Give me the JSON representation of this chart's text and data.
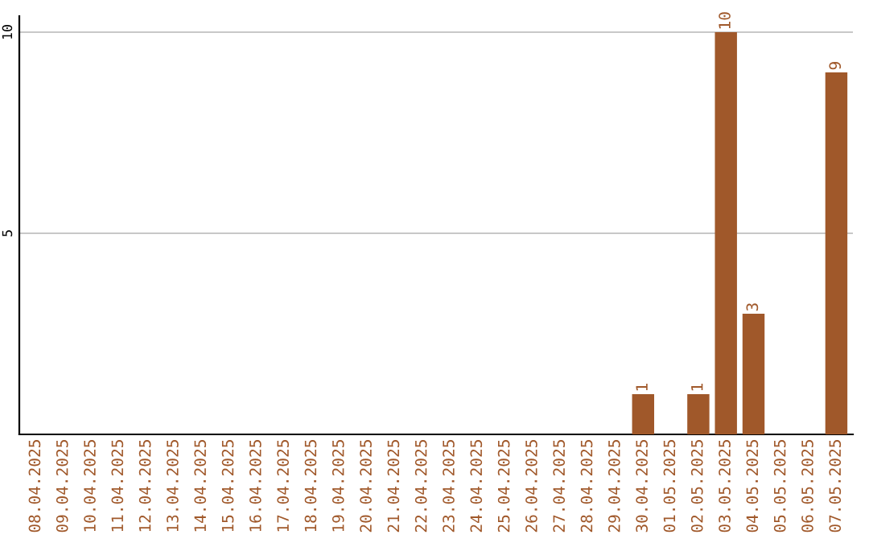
{
  "chart_data": {
    "type": "bar",
    "categories": [
      "08.04.2025",
      "09.04.2025",
      "10.04.2025",
      "11.04.2025",
      "12.04.2025",
      "13.04.2025",
      "14.04.2025",
      "15.04.2025",
      "16.04.2025",
      "17.04.2025",
      "18.04.2025",
      "19.04.2025",
      "20.04.2025",
      "21.04.2025",
      "22.04.2025",
      "23.04.2025",
      "24.04.2025",
      "25.04.2025",
      "26.04.2025",
      "27.04.2025",
      "28.04.2025",
      "29.04.2025",
      "30.04.2025",
      "01.05.2025",
      "02.05.2025",
      "03.05.2025",
      "04.05.2025",
      "05.05.2025",
      "06.05.2025",
      "07.05.2025"
    ],
    "values": [
      0,
      0,
      0,
      0,
      0,
      0,
      0,
      0,
      0,
      0,
      0,
      0,
      0,
      0,
      0,
      0,
      0,
      0,
      0,
      0,
      0,
      0,
      1,
      0,
      1,
      10,
      3,
      0,
      0,
      9
    ],
    "value_labels": [
      null,
      null,
      null,
      null,
      null,
      null,
      null,
      null,
      null,
      null,
      null,
      null,
      null,
      null,
      null,
      null,
      null,
      null,
      null,
      null,
      null,
      null,
      "1",
      null,
      "1",
      "10",
      "3",
      null,
      null,
      "9"
    ],
    "color": "#a0582a",
    "ylim": [
      0,
      10.4
    ],
    "yticks": [
      5,
      10
    ],
    "grid": "y"
  }
}
